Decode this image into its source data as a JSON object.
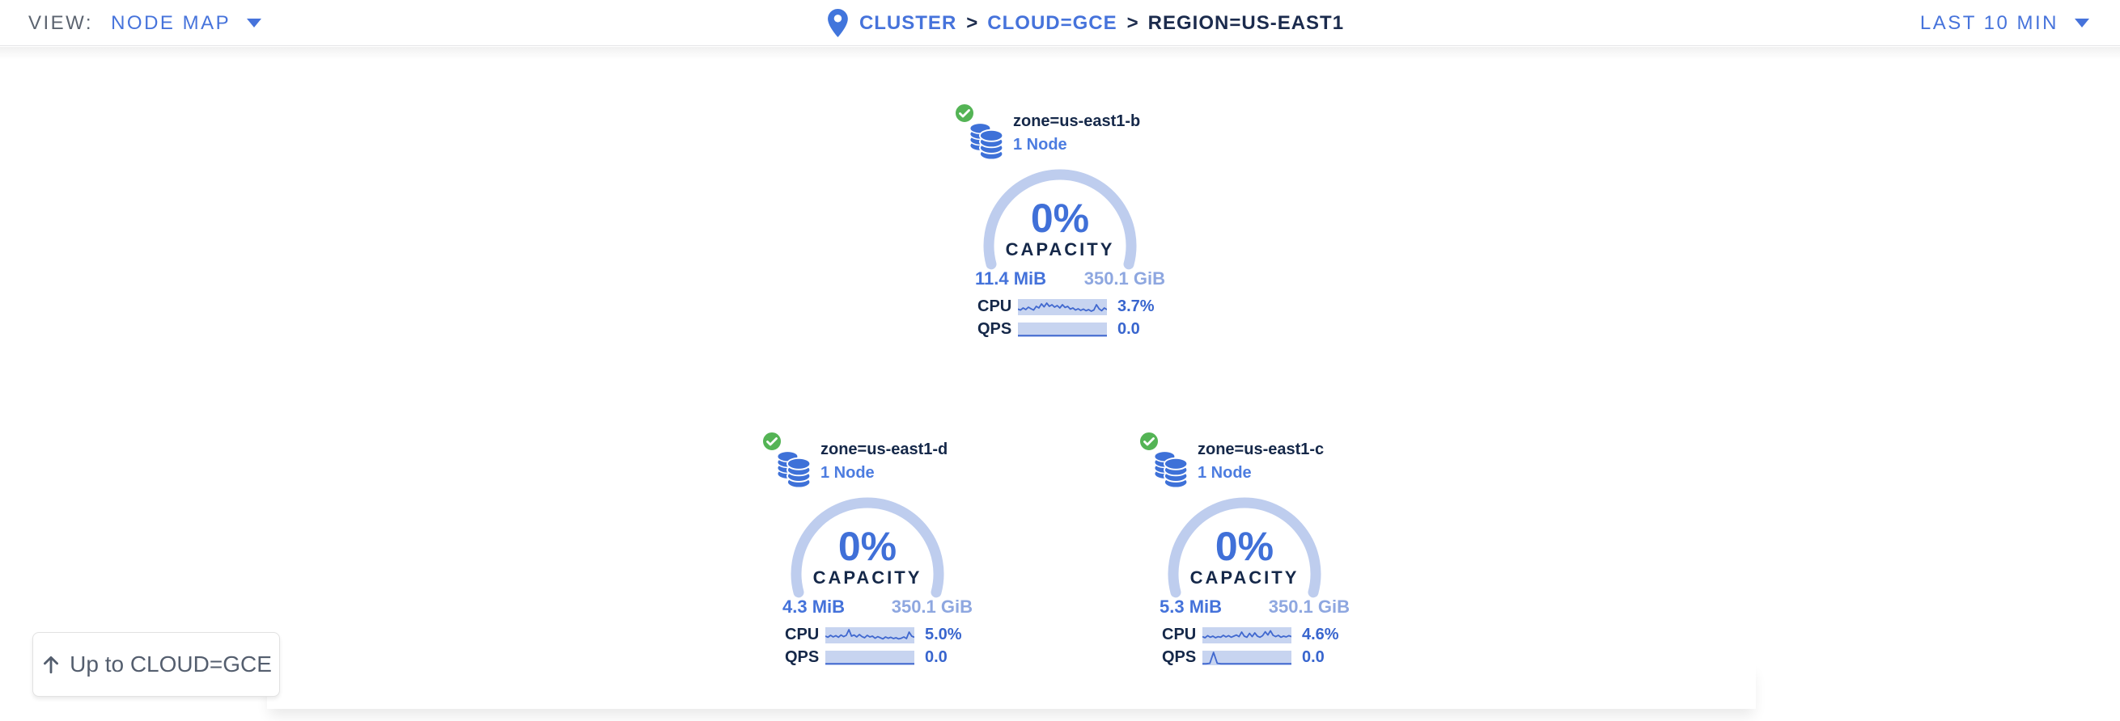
{
  "header": {
    "view_label": "VIEW:",
    "view_value": "NODE MAP",
    "breadcrumb": {
      "items": [
        {
          "label": "CLUSTER"
        },
        {
          "label": "CLOUD=GCE"
        },
        {
          "label": "REGION=US-EAST1"
        }
      ],
      "separator": ">"
    },
    "time_range": "LAST 10 MIN"
  },
  "zones": [
    {
      "name": "zone=us-east1-b",
      "nodes": "1 Node",
      "capacity_pct": "0%",
      "capacity_label": "CAPACITY",
      "used": "11.4 MiB",
      "total": "350.1 GiB",
      "cpu_label": "CPU",
      "cpu_value": "3.7%",
      "qps_label": "QPS",
      "qps_value": "0.0",
      "status": "healthy",
      "cpu_spark": [
        0.62,
        0.68,
        0.55,
        0.65,
        0.5,
        0.6,
        0.68,
        0.45,
        0.55,
        0.3,
        0.48,
        0.25,
        0.45,
        0.35,
        0.5,
        0.4,
        0.55,
        0.35,
        0.52,
        0.45,
        0.62,
        0.55,
        0.68,
        0.6,
        0.7,
        0.62,
        0.72,
        0.65,
        0.75,
        0.68,
        0.35,
        0.6,
        0.72,
        0.55,
        0.65
      ],
      "qps_spark": [
        0.9,
        0.9
      ]
    },
    {
      "name": "zone=us-east1-d",
      "nodes": "1 Node",
      "capacity_pct": "0%",
      "capacity_label": "CAPACITY",
      "used": "4.3 MiB",
      "total": "350.1 GiB",
      "cpu_label": "CPU",
      "cpu_value": "5.0%",
      "qps_label": "QPS",
      "qps_value": "0.0",
      "status": "healthy",
      "cpu_spark": [
        0.55,
        0.62,
        0.5,
        0.6,
        0.52,
        0.62,
        0.48,
        0.58,
        0.5,
        0.15,
        0.55,
        0.48,
        0.6,
        0.45,
        0.58,
        0.65,
        0.5,
        0.6,
        0.55,
        0.68,
        0.58,
        0.65,
        0.72,
        0.6,
        0.68,
        0.62,
        0.7,
        0.65,
        0.72,
        0.68,
        0.6,
        0.7,
        0.3,
        0.55,
        0.62
      ],
      "qps_spark": [
        0.9,
        0.9
      ]
    },
    {
      "name": "zone=us-east1-c",
      "nodes": "1 Node",
      "capacity_pct": "0%",
      "capacity_label": "CAPACITY",
      "used": "5.3 MiB",
      "total": "350.1 GiB",
      "cpu_label": "CPU",
      "cpu_value": "4.6%",
      "qps_label": "QPS",
      "qps_value": "0.0",
      "status": "healthy",
      "cpu_spark": [
        0.58,
        0.65,
        0.52,
        0.62,
        0.55,
        0.65,
        0.58,
        0.62,
        0.5,
        0.6,
        0.52,
        0.62,
        0.55,
        0.48,
        0.58,
        0.3,
        0.55,
        0.62,
        0.38,
        0.58,
        0.35,
        0.55,
        0.62,
        0.52,
        0.28,
        0.48,
        0.22,
        0.5,
        0.58,
        0.5,
        0.62,
        0.55,
        0.6,
        0.52,
        0.58
      ],
      "qps_spark": [
        0.9,
        0.9,
        0.87,
        0.12,
        0.87,
        0.9,
        0.9,
        0.9,
        0.9,
        0.9,
        0.9,
        0.9,
        0.9,
        0.9,
        0.9,
        0.9,
        0.9,
        0.9,
        0.9,
        0.9,
        0.9,
        0.9,
        0.9,
        0.9,
        0.9
      ]
    }
  ],
  "up_button": {
    "label": "Up to CLOUD=GCE"
  },
  "colors": {
    "accent_blue": "#4673DB",
    "value_blue": "#3865CE",
    "navy": "#152849",
    "arc_blue": "#BECDEE",
    "spark_bg": "#C7D4F0",
    "spark_line": "#4068CF",
    "total_blue": "#8EA7E0",
    "green": "#54B455",
    "gray_text": "#5C6470",
    "button_text": "#545E6E"
  }
}
